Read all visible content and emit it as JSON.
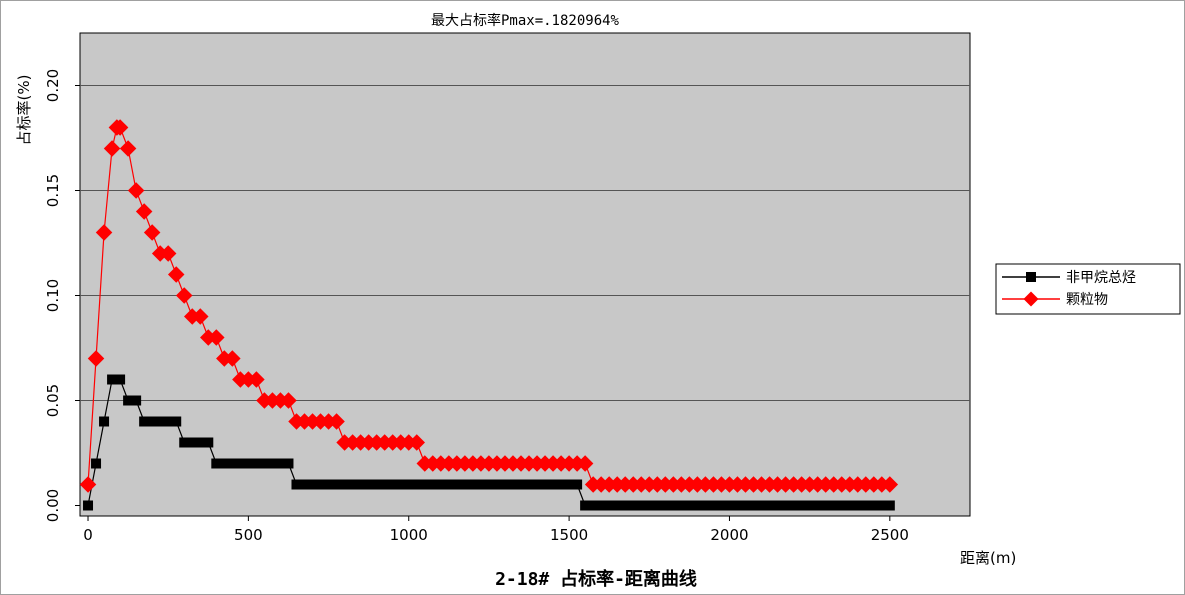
{
  "chart_data": {
    "type": "line",
    "title": "最大占标率Pmax=.1820964%",
    "subtitle": "2-18# 占标率-距离曲线",
    "xlabel": "距离(m)",
    "ylabel": "占标率(%)",
    "xlim": [
      -25,
      2750
    ],
    "ylim": [
      -0.005,
      0.225
    ],
    "xticks": [
      0,
      500,
      1000,
      1500,
      2000,
      2500
    ],
    "yticks": [
      0.0,
      0.05,
      0.1,
      0.15,
      0.2
    ],
    "ytick_labels": [
      "0.00",
      "0.05",
      "0.10",
      "0.15",
      "0.20"
    ],
    "grid": "horizontal",
    "legend_position": "right",
    "plot_background": "#c8c8c8",
    "series": [
      {
        "name": "非甲烷总烃",
        "color": "#000000",
        "marker": "square",
        "points": [
          [
            0,
            0.0
          ],
          [
            25,
            0.02
          ],
          [
            50,
            0.04
          ],
          [
            75,
            0.06
          ],
          [
            100,
            0.06
          ],
          [
            125,
            0.05
          ],
          [
            150,
            0.05
          ],
          [
            175,
            0.04
          ],
          [
            200,
            0.04
          ],
          [
            225,
            0.04
          ],
          [
            250,
            0.04
          ],
          [
            275,
            0.04
          ],
          [
            300,
            0.03
          ],
          [
            325,
            0.03
          ],
          [
            350,
            0.03
          ],
          [
            375,
            0.03
          ],
          [
            400,
            0.02
          ],
          [
            425,
            0.02
          ],
          [
            450,
            0.02
          ],
          [
            475,
            0.02
          ],
          [
            500,
            0.02
          ],
          [
            525,
            0.02
          ],
          [
            550,
            0.02
          ],
          [
            575,
            0.02
          ],
          [
            600,
            0.02
          ],
          [
            625,
            0.02
          ],
          [
            650,
            0.01
          ],
          [
            675,
            0.01
          ],
          [
            700,
            0.01
          ],
          [
            725,
            0.01
          ],
          [
            750,
            0.01
          ],
          [
            775,
            0.01
          ],
          [
            800,
            0.01
          ],
          [
            825,
            0.01
          ],
          [
            850,
            0.01
          ],
          [
            875,
            0.01
          ],
          [
            900,
            0.01
          ],
          [
            925,
            0.01
          ],
          [
            950,
            0.01
          ],
          [
            975,
            0.01
          ],
          [
            1000,
            0.01
          ],
          [
            1025,
            0.01
          ],
          [
            1050,
            0.01
          ],
          [
            1075,
            0.01
          ],
          [
            1100,
            0.01
          ],
          [
            1125,
            0.01
          ],
          [
            1150,
            0.01
          ],
          [
            1175,
            0.01
          ],
          [
            1200,
            0.01
          ],
          [
            1225,
            0.01
          ],
          [
            1250,
            0.01
          ],
          [
            1275,
            0.01
          ],
          [
            1300,
            0.01
          ],
          [
            1325,
            0.01
          ],
          [
            1350,
            0.01
          ],
          [
            1375,
            0.01
          ],
          [
            1400,
            0.01
          ],
          [
            1425,
            0.01
          ],
          [
            1450,
            0.01
          ],
          [
            1475,
            0.01
          ],
          [
            1500,
            0.01
          ],
          [
            1525,
            0.01
          ],
          [
            1550,
            0.0
          ],
          [
            1575,
            0.0
          ],
          [
            1600,
            0.0
          ],
          [
            1625,
            0.0
          ],
          [
            1650,
            0.0
          ],
          [
            1675,
            0.0
          ],
          [
            1700,
            0.0
          ],
          [
            1725,
            0.0
          ],
          [
            1750,
            0.0
          ],
          [
            1775,
            0.0
          ],
          [
            1800,
            0.0
          ],
          [
            1825,
            0.0
          ],
          [
            1850,
            0.0
          ],
          [
            1875,
            0.0
          ],
          [
            1900,
            0.0
          ],
          [
            1925,
            0.0
          ],
          [
            1950,
            0.0
          ],
          [
            1975,
            0.0
          ],
          [
            2000,
            0.0
          ],
          [
            2025,
            0.0
          ],
          [
            2050,
            0.0
          ],
          [
            2075,
            0.0
          ],
          [
            2100,
            0.0
          ],
          [
            2125,
            0.0
          ],
          [
            2150,
            0.0
          ],
          [
            2175,
            0.0
          ],
          [
            2200,
            0.0
          ],
          [
            2225,
            0.0
          ],
          [
            2250,
            0.0
          ],
          [
            2275,
            0.0
          ],
          [
            2300,
            0.0
          ],
          [
            2325,
            0.0
          ],
          [
            2350,
            0.0
          ],
          [
            2375,
            0.0
          ],
          [
            2400,
            0.0
          ],
          [
            2425,
            0.0
          ],
          [
            2450,
            0.0
          ],
          [
            2475,
            0.0
          ],
          [
            2500,
            0.0
          ]
        ]
      },
      {
        "name": "颗粒物",
        "color": "#ff0000",
        "marker": "diamond",
        "points": [
          [
            0,
            0.01
          ],
          [
            25,
            0.07
          ],
          [
            50,
            0.13
          ],
          [
            75,
            0.17
          ],
          [
            90,
            0.18
          ],
          [
            100,
            0.18
          ],
          [
            125,
            0.17
          ],
          [
            150,
            0.15
          ],
          [
            175,
            0.14
          ],
          [
            200,
            0.13
          ],
          [
            225,
            0.12
          ],
          [
            250,
            0.12
          ],
          [
            275,
            0.11
          ],
          [
            300,
            0.1
          ],
          [
            325,
            0.09
          ],
          [
            350,
            0.09
          ],
          [
            375,
            0.08
          ],
          [
            400,
            0.08
          ],
          [
            425,
            0.07
          ],
          [
            450,
            0.07
          ],
          [
            475,
            0.06
          ],
          [
            500,
            0.06
          ],
          [
            525,
            0.06
          ],
          [
            550,
            0.05
          ],
          [
            575,
            0.05
          ],
          [
            600,
            0.05
          ],
          [
            625,
            0.05
          ],
          [
            650,
            0.04
          ],
          [
            675,
            0.04
          ],
          [
            700,
            0.04
          ],
          [
            725,
            0.04
          ],
          [
            750,
            0.04
          ],
          [
            775,
            0.04
          ],
          [
            800,
            0.03
          ],
          [
            825,
            0.03
          ],
          [
            850,
            0.03
          ],
          [
            875,
            0.03
          ],
          [
            900,
            0.03
          ],
          [
            925,
            0.03
          ],
          [
            950,
            0.03
          ],
          [
            975,
            0.03
          ],
          [
            1000,
            0.03
          ],
          [
            1025,
            0.03
          ],
          [
            1050,
            0.02
          ],
          [
            1075,
            0.02
          ],
          [
            1100,
            0.02
          ],
          [
            1125,
            0.02
          ],
          [
            1150,
            0.02
          ],
          [
            1175,
            0.02
          ],
          [
            1200,
            0.02
          ],
          [
            1225,
            0.02
          ],
          [
            1250,
            0.02
          ],
          [
            1275,
            0.02
          ],
          [
            1300,
            0.02
          ],
          [
            1325,
            0.02
          ],
          [
            1350,
            0.02
          ],
          [
            1375,
            0.02
          ],
          [
            1400,
            0.02
          ],
          [
            1425,
            0.02
          ],
          [
            1450,
            0.02
          ],
          [
            1475,
            0.02
          ],
          [
            1500,
            0.02
          ],
          [
            1525,
            0.02
          ],
          [
            1550,
            0.02
          ],
          [
            1575,
            0.01
          ],
          [
            1600,
            0.01
          ],
          [
            1625,
            0.01
          ],
          [
            1650,
            0.01
          ],
          [
            1675,
            0.01
          ],
          [
            1700,
            0.01
          ],
          [
            1725,
            0.01
          ],
          [
            1750,
            0.01
          ],
          [
            1775,
            0.01
          ],
          [
            1800,
            0.01
          ],
          [
            1825,
            0.01
          ],
          [
            1850,
            0.01
          ],
          [
            1875,
            0.01
          ],
          [
            1900,
            0.01
          ],
          [
            1925,
            0.01
          ],
          [
            1950,
            0.01
          ],
          [
            1975,
            0.01
          ],
          [
            2000,
            0.01
          ],
          [
            2025,
            0.01
          ],
          [
            2050,
            0.01
          ],
          [
            2075,
            0.01
          ],
          [
            2100,
            0.01
          ],
          [
            2125,
            0.01
          ],
          [
            2150,
            0.01
          ],
          [
            2175,
            0.01
          ],
          [
            2200,
            0.01
          ],
          [
            2225,
            0.01
          ],
          [
            2250,
            0.01
          ],
          [
            2275,
            0.01
          ],
          [
            2300,
            0.01
          ],
          [
            2325,
            0.01
          ],
          [
            2350,
            0.01
          ],
          [
            2375,
            0.01
          ],
          [
            2400,
            0.01
          ],
          [
            2425,
            0.01
          ],
          [
            2450,
            0.01
          ],
          [
            2475,
            0.01
          ],
          [
            2500,
            0.01
          ]
        ]
      }
    ]
  }
}
